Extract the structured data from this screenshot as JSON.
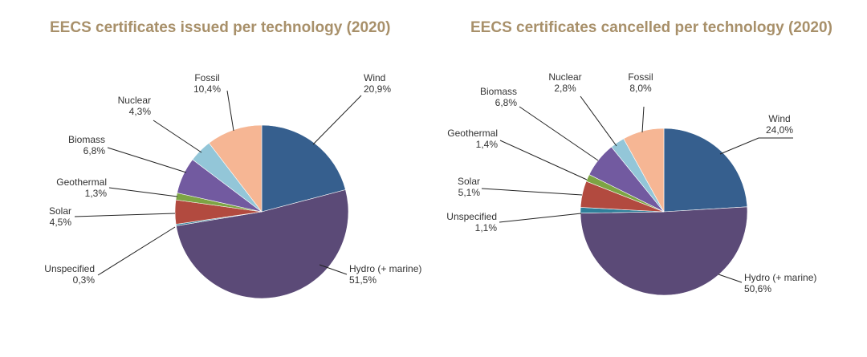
{
  "chart_data": [
    {
      "type": "pie",
      "title": "EECS certificates issued per technology (2020)",
      "slices": [
        {
          "name": "Wind",
          "value": 20.9,
          "display": "20,9%",
          "color": "#365f8e"
        },
        {
          "name": "Hydro (+ marine)",
          "value": 51.5,
          "display": "51,5%",
          "color": "#5b4a77"
        },
        {
          "name": "Unspecified",
          "value": 0.3,
          "display": "0,3%",
          "color": "#2f7f9a"
        },
        {
          "name": "Solar",
          "value": 4.5,
          "display": "4,5%",
          "color": "#b24a3f"
        },
        {
          "name": "Geothermal",
          "value": 1.3,
          "display": "1,3%",
          "color": "#7da444"
        },
        {
          "name": "Biomass",
          "value": 6.8,
          "display": "6,8%",
          "color": "#725aa0"
        },
        {
          "name": "Nuclear",
          "value": 4.3,
          "display": "4,3%",
          "color": "#93c6d8"
        },
        {
          "name": "Fossil",
          "value": 10.4,
          "display": "10,4%",
          "color": "#f6b694"
        }
      ]
    },
    {
      "type": "pie",
      "title": "EECS certificates cancelled per technology (2020)",
      "slices": [
        {
          "name": "Wind",
          "value": 24.0,
          "display": "24,0%",
          "color": "#365f8e"
        },
        {
          "name": "Hydro (+ marine)",
          "value": 50.6,
          "display": "50,6%",
          "color": "#5b4a77"
        },
        {
          "name": "Unspecified",
          "value": 1.1,
          "display": "1,1%",
          "color": "#2f7f9a"
        },
        {
          "name": "Solar",
          "value": 5.1,
          "display": "5,1%",
          "color": "#b24a3f"
        },
        {
          "name": "Geothermal",
          "value": 1.4,
          "display": "1,4%",
          "color": "#7da444"
        },
        {
          "name": "Biomass",
          "value": 6.8,
          "display": "6,8%",
          "color": "#725aa0"
        },
        {
          "name": "Nuclear",
          "value": 2.8,
          "display": "2,8%",
          "color": "#93c6d8"
        },
        {
          "name": "Fossil",
          "value": 8.0,
          "display": "8,0%",
          "color": "#f6b694"
        }
      ]
    }
  ]
}
